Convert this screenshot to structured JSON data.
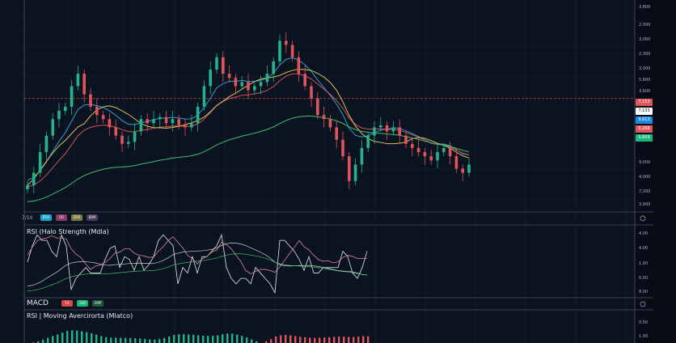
{
  "chart_data": {
    "type": "candlestick",
    "ylim": [
      0,
      100
    ],
    "closes": [
      13,
      19,
      29,
      37,
      45,
      49,
      51,
      61,
      67,
      57,
      51,
      47,
      45,
      41,
      37,
      33,
      34,
      39,
      45,
      43,
      45,
      46,
      43,
      45,
      42,
      41,
      43,
      51,
      61,
      69,
      75,
      67,
      65,
      61,
      63,
      59,
      61,
      63,
      67,
      73,
      83,
      81,
      75,
      67,
      61,
      55,
      47,
      45,
      41,
      35,
      27,
      15,
      23,
      31,
      37,
      41,
      42,
      39,
      41,
      37,
      33,
      31,
      29,
      27,
      25,
      29,
      31,
      27,
      21,
      19,
      23
    ],
    "reference_line": 55,
    "grid": true,
    "price_axis_labels": [
      "3,800",
      "2,000",
      "3,060",
      "2,300",
      "3,000",
      "5,800",
      "3,600",
      "9,000",
      "4,000",
      "7,200",
      "3,900"
    ],
    "price_tags": [
      {
        "text": "7,153",
        "color": "#e05656"
      },
      {
        "text": "7,133",
        "color": "#ffffff"
      },
      {
        "text": "9,613",
        "color": "#1e88e5"
      },
      {
        "text": "6,268",
        "color": "#e05656"
      },
      {
        "text": "5,609",
        "color": "#17b67a"
      }
    ],
    "ma_colors": [
      "#2a9fd6",
      "#d0525a",
      "#d9c25a",
      "#3fbf6a"
    ],
    "up_color": "#26b28a",
    "down_color": "#e0545c"
  },
  "toolbar": {
    "label": "7/10",
    "pills": [
      {
        "text": "EMA",
        "color": "#1aa6c8"
      },
      {
        "text": "DD",
        "color": "#8a3a66"
      },
      {
        "text": "EMA",
        "color": "#7b7a3a"
      },
      {
        "text": "BBM",
        "color": "#4a3a5a"
      }
    ]
  },
  "rsi": {
    "title": "RSI (Halo Strength (Mdla)",
    "axis": [
      "4.00",
      "4.00",
      "1.00",
      "0.00",
      "8.00"
    ]
  },
  "macd": {
    "label": "MACD",
    "pills": [
      {
        "text": "10",
        "color": "#d94848"
      },
      {
        "text": "340",
        "color": "#17b67a"
      },
      {
        "text": "SMP",
        "color": "#1f5a3a"
      }
    ],
    "title": "RSI | Moving Avercirorta (Mlatco)",
    "axis": [
      "0.50",
      "1.00"
    ]
  }
}
